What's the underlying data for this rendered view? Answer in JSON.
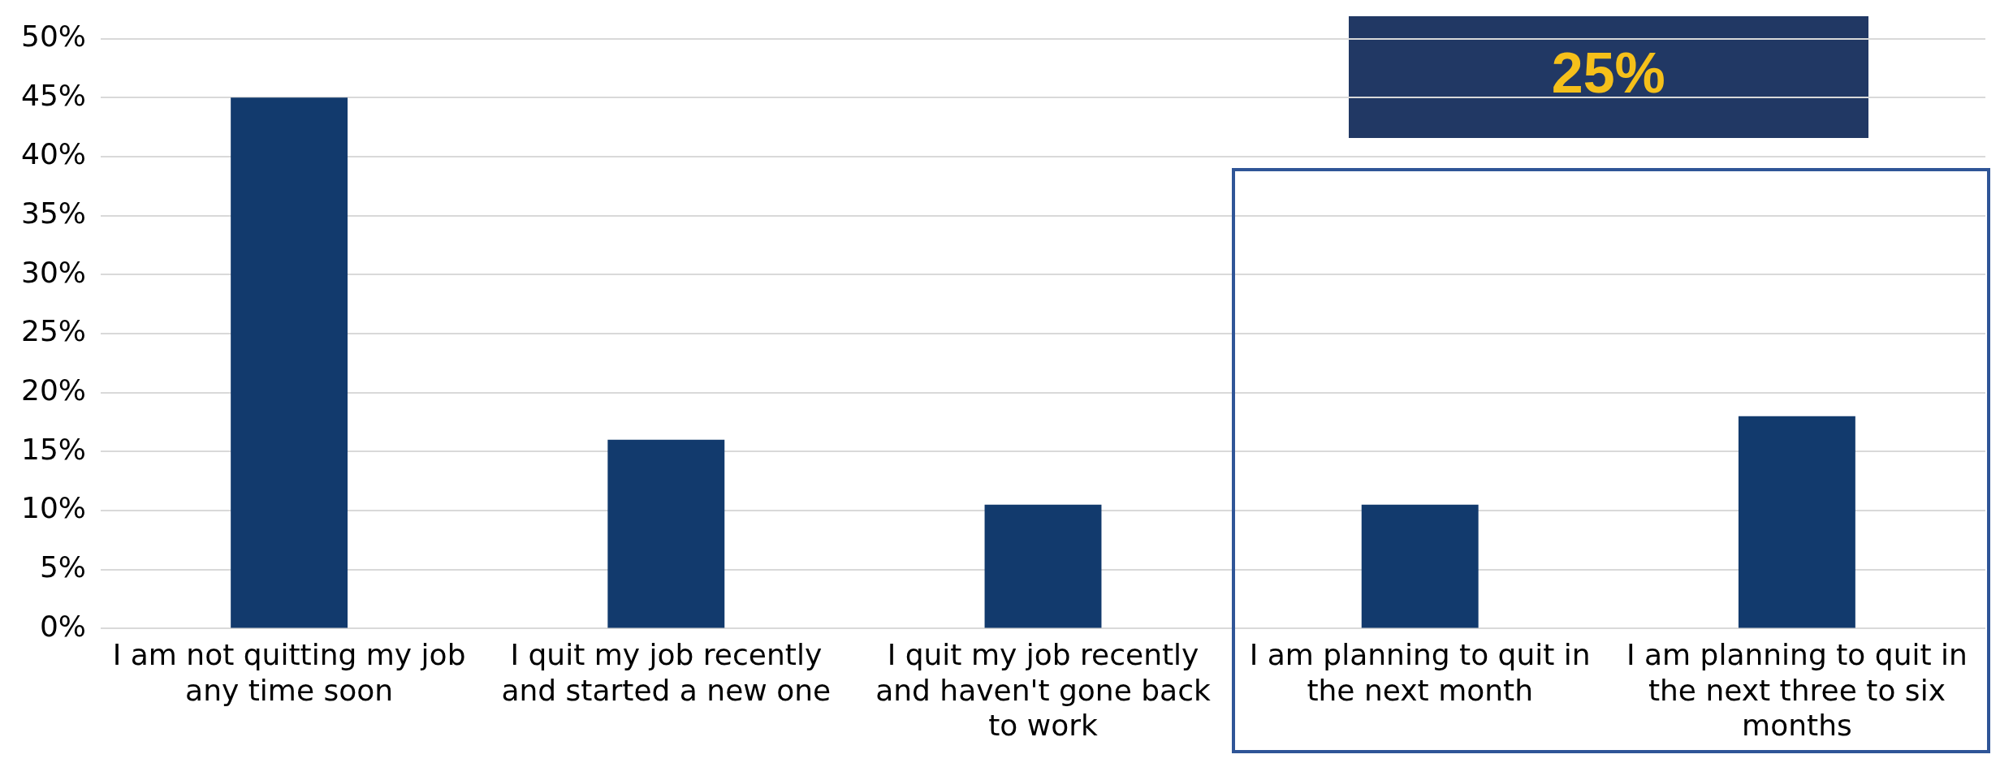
{
  "chart_data": {
    "type": "bar",
    "categories": [
      "I am not quitting my job any time soon",
      "I quit my job recently and started a new one",
      "I quit my job recently and haven't gone back to work",
      "I am planning to quit in the next month",
      "I am planning to quit in the next three to six months"
    ],
    "values": [
      45,
      16,
      10.5,
      10.5,
      18
    ],
    "color": "#123a6d",
    "ylim": [
      0,
      50
    ],
    "yticks": [
      {
        "value": 0,
        "label": "0%"
      },
      {
        "value": 5,
        "label": "5%"
      },
      {
        "value": 10,
        "label": "10%"
      },
      {
        "value": 15,
        "label": "15%"
      },
      {
        "value": 20,
        "label": "20%"
      },
      {
        "value": 25,
        "label": "25%"
      },
      {
        "value": 30,
        "label": "30%"
      },
      {
        "value": 35,
        "label": "35%"
      },
      {
        "value": 40,
        "label": "40%"
      },
      {
        "value": 45,
        "label": "45%"
      },
      {
        "value": 50,
        "label": "50%"
      }
    ],
    "grid": "y",
    "annotations": [
      "25%"
    ]
  }
}
